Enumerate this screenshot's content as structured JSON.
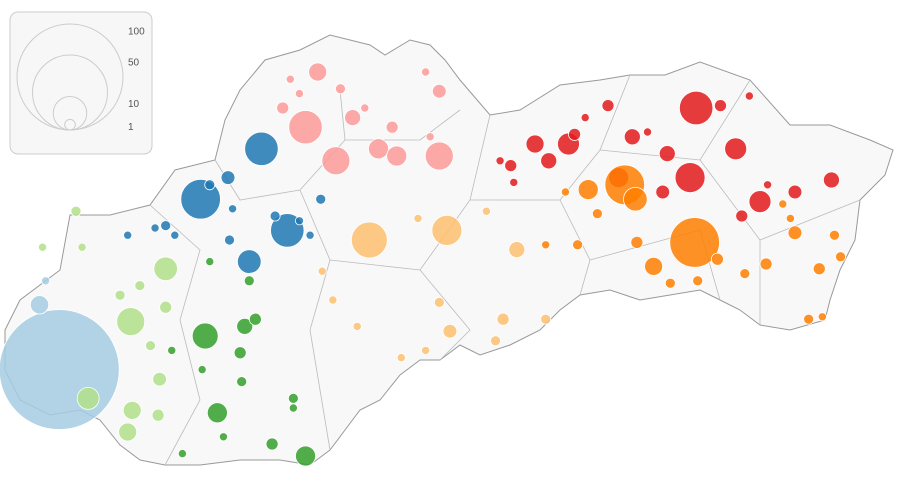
{
  "legend": {
    "ticks": [
      100,
      50,
      10,
      1
    ]
  },
  "groups": [
    {
      "color": "#a6cde3",
      "points": [
        [
          17.16,
          48.12,
          128
        ],
        [
          17.03,
          48.39,
          3
        ],
        [
          17.07,
          48.49,
          0.6
        ]
      ]
    },
    {
      "color": "#1f78b4",
      "points": [
        [
          18.49,
          49.04,
          10
        ],
        [
          18.09,
          48.83,
          14
        ],
        [
          18.66,
          48.7,
          10
        ],
        [
          18.41,
          48.57,
          5
        ],
        [
          18.27,
          48.92,
          1.7
        ],
        [
          18.15,
          48.89,
          0.9
        ],
        [
          18.28,
          48.66,
          0.9
        ],
        [
          17.61,
          48.68,
          0.6
        ],
        [
          17.79,
          48.71,
          0.6
        ],
        [
          18.58,
          48.76,
          0.9
        ],
        [
          18.74,
          48.74,
          0.6
        ],
        [
          18.81,
          48.68,
          0.6
        ],
        [
          18.88,
          48.83,
          0.9
        ],
        [
          17.86,
          48.72,
          0.9
        ],
        [
          17.92,
          48.68,
          0.6
        ],
        [
          18.3,
          48.79,
          0.6
        ]
      ]
    },
    {
      "color": "#b2df8a",
      "points": [
        [
          17.86,
          48.54,
          5
        ],
        [
          17.63,
          48.32,
          7
        ],
        [
          17.35,
          48.0,
          4.3
        ],
        [
          17.61,
          47.86,
          2.9
        ],
        [
          17.64,
          47.95,
          2.9
        ],
        [
          17.82,
          48.08,
          1.7
        ],
        [
          17.27,
          48.78,
          0.9
        ],
        [
          17.05,
          48.63,
          0.6
        ],
        [
          17.31,
          48.63,
          0.6
        ],
        [
          17.56,
          48.43,
          0.9
        ],
        [
          17.69,
          48.47,
          0.9
        ],
        [
          17.81,
          47.93,
          1.3
        ],
        [
          17.86,
          48.38,
          1.3
        ],
        [
          17.76,
          48.22,
          0.9
        ]
      ]
    },
    {
      "color": "#33a02c",
      "points": [
        [
          18.12,
          48.26,
          6
        ],
        [
          18.2,
          47.94,
          3.6
        ],
        [
          18.78,
          47.76,
          3.6
        ],
        [
          18.56,
          47.81,
          1.3
        ],
        [
          18.38,
          48.3,
          2.3
        ],
        [
          18.45,
          48.33,
          1.3
        ],
        [
          18.35,
          48.19,
          1.3
        ],
        [
          18.7,
          48.0,
          0.9
        ],
        [
          18.7,
          47.96,
          0.6
        ],
        [
          17.97,
          47.77,
          0.6
        ],
        [
          18.24,
          47.84,
          0.6
        ],
        [
          18.15,
          48.57,
          0.6
        ],
        [
          17.9,
          48.2,
          0.6
        ],
        [
          18.41,
          48.49,
          0.9
        ],
        [
          18.36,
          48.07,
          0.9
        ],
        [
          18.1,
          48.12,
          0.6
        ]
      ]
    },
    {
      "color": "#fb9a99",
      "points": [
        [
          18.78,
          49.13,
          10
        ],
        [
          18.86,
          49.36,
          2.9
        ],
        [
          18.98,
          48.99,
          7
        ],
        [
          19.26,
          49.04,
          3.6
        ],
        [
          19.38,
          49.01,
          3.6
        ],
        [
          19.66,
          49.01,
          7
        ],
        [
          19.09,
          49.17,
          2.3
        ],
        [
          18.63,
          49.21,
          1.3
        ],
        [
          19.66,
          49.28,
          1.7
        ],
        [
          18.74,
          49.27,
          0.6
        ],
        [
          19.57,
          49.36,
          0.6
        ],
        [
          19.01,
          49.29,
          0.9
        ],
        [
          19.17,
          49.21,
          0.6
        ],
        [
          19.35,
          49.13,
          1.3
        ],
        [
          19.6,
          49.09,
          0.6
        ],
        [
          18.68,
          49.33,
          0.6
        ]
      ]
    },
    {
      "color": "#e31a1c",
      "points": [
        [
          21.35,
          49.21,
          10
        ],
        [
          20.84,
          48.92,
          3.6
        ],
        [
          21.31,
          48.92,
          8
        ],
        [
          21.61,
          49.04,
          4.3
        ],
        [
          21.77,
          48.82,
          4.3
        ],
        [
          22.24,
          48.91,
          2.3
        ],
        [
          20.29,
          49.06,
          2.9
        ],
        [
          20.51,
          49.06,
          4.3
        ],
        [
          20.13,
          48.97,
          1.3
        ],
        [
          20.38,
          48.99,
          2.3
        ],
        [
          20.93,
          49.09,
          2.3
        ],
        [
          21.16,
          49.02,
          2.3
        ],
        [
          21.65,
          48.76,
          1.3
        ],
        [
          22.0,
          48.86,
          1.7
        ],
        [
          21.51,
          49.22,
          1.3
        ],
        [
          20.77,
          49.22,
          1.3
        ],
        [
          20.62,
          49.17,
          0.6
        ],
        [
          20.06,
          48.99,
          0.6
        ],
        [
          21.03,
          49.11,
          0.6
        ],
        [
          21.13,
          48.86,
          1.7
        ],
        [
          21.82,
          48.89,
          0.6
        ],
        [
          21.7,
          49.26,
          0.6
        ],
        [
          20.15,
          48.9,
          0.6
        ],
        [
          20.55,
          49.1,
          1.3
        ]
      ]
    },
    {
      "color": "#fdbf6f",
      "points": [
        [
          19.2,
          48.66,
          11.5
        ],
        [
          19.71,
          48.7,
          8
        ],
        [
          20.17,
          48.62,
          2.3
        ],
        [
          20.08,
          48.33,
          1.3
        ],
        [
          19.73,
          48.28,
          1.7
        ],
        [
          19.12,
          48.3,
          0.6
        ],
        [
          18.89,
          48.53,
          0.6
        ],
        [
          19.52,
          48.75,
          0.6
        ],
        [
          19.97,
          48.78,
          0.6
        ],
        [
          18.96,
          48.41,
          0.6
        ],
        [
          19.41,
          48.17,
          0.6
        ],
        [
          19.57,
          48.2,
          0.6
        ],
        [
          19.66,
          48.4,
          0.9
        ],
        [
          20.36,
          48.33,
          0.9
        ],
        [
          20.03,
          48.24,
          0.9
        ]
      ]
    },
    {
      "color": "#ff7f00",
      "points": [
        [
          21.34,
          48.65,
          22
        ],
        [
          20.88,
          48.89,
          14
        ],
        [
          20.95,
          48.83,
          5
        ],
        [
          20.64,
          48.87,
          3.6
        ],
        [
          21.07,
          48.55,
          2.9
        ],
        [
          21.49,
          48.58,
          1.3
        ],
        [
          22.0,
          48.69,
          1.7
        ],
        [
          22.16,
          48.54,
          1.3
        ],
        [
          21.81,
          48.56,
          1.3
        ],
        [
          21.67,
          48.52,
          0.9
        ],
        [
          21.18,
          48.48,
          0.9
        ],
        [
          20.36,
          48.64,
          0.6
        ],
        [
          20.7,
          48.77,
          0.9
        ],
        [
          20.57,
          48.64,
          0.9
        ],
        [
          20.96,
          48.65,
          1.3
        ],
        [
          21.92,
          48.81,
          0.6
        ],
        [
          22.09,
          48.33,
          0.9
        ],
        [
          22.18,
          48.34,
          0.6
        ],
        [
          22.26,
          48.68,
          0.9
        ],
        [
          21.97,
          48.75,
          0.6
        ],
        [
          21.36,
          48.49,
          0.9
        ],
        [
          22.3,
          48.59,
          0.9
        ],
        [
          20.49,
          48.86,
          0.6
        ]
      ]
    }
  ]
}
